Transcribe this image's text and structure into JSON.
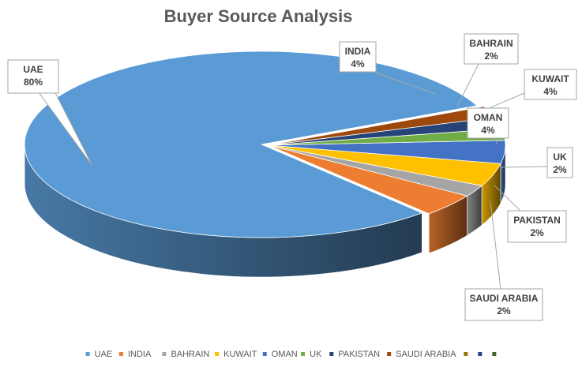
{
  "chart_data": {
    "type": "pie",
    "title": "Buyer Source Analysis",
    "categories": [
      "UAE",
      "INDIA",
      "BAHRAIN",
      "KUWAIT",
      "OMAN",
      "UK",
      "PAKISTAN",
      "SAUDI ARABIA"
    ],
    "values": [
      80,
      4,
      2,
      4,
      4,
      2,
      2,
      2
    ],
    "data_labels": [
      "80%",
      "4%",
      "2%",
      "4%",
      "4%",
      "2%",
      "2%",
      "2%"
    ],
    "colors": [
      "#5B9BD5",
      "#ED7D31",
      "#A5A5A5",
      "#FFC000",
      "#4472C4",
      "#70AD47",
      "#264478",
      "#9E480E"
    ],
    "legend": {
      "position": "bottom",
      "entries": [
        "UAE",
        "INDIA",
        "BAHRAIN",
        "KUWAIT",
        "OMAN",
        "UK",
        "PAKISTAN",
        "SAUDI ARABIA",
        "",
        "",
        ""
      ],
      "extra_marker_colors": [
        "#997300",
        "#264478",
        "#43682B"
      ]
    },
    "style": "3d-exploded-callouts"
  }
}
